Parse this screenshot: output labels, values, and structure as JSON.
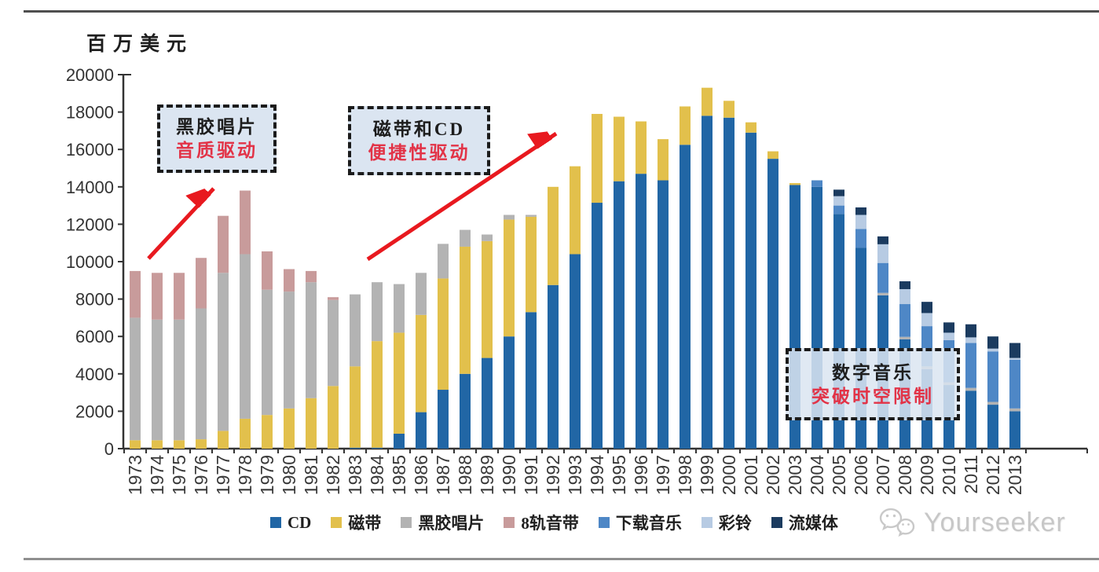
{
  "header": {
    "unit_label": "百万美元"
  },
  "chart_data": {
    "type": "bar",
    "stacked": true,
    "title": "",
    "xlabel": "",
    "ylabel": "百万美元",
    "ylim": [
      0,
      20000
    ],
    "ytick_step": 2000,
    "grid": false,
    "legend_position": "bottom",
    "x": [
      1973,
      1974,
      1975,
      1976,
      1977,
      1978,
      1979,
      1980,
      1981,
      1982,
      1983,
      1984,
      1985,
      1986,
      1987,
      1988,
      1989,
      1990,
      1991,
      1992,
      1993,
      1994,
      1995,
      1996,
      1997,
      1998,
      1999,
      2000,
      2001,
      2002,
      2003,
      2004,
      2005,
      2006,
      2007,
      2008,
      2009,
      2010,
      2011,
      2012,
      2013
    ],
    "series": [
      {
        "name": "CD",
        "color": "#2166a5",
        "values": [
          0,
          0,
          0,
          0,
          0,
          0,
          0,
          0,
          0,
          0,
          50,
          50,
          800,
          1950,
          3150,
          4000,
          4850,
          6000,
          7300,
          8750,
          10400,
          13150,
          14300,
          14700,
          14350,
          16250,
          17800,
          17700,
          16900,
          15500,
          14100,
          14000,
          12550,
          10750,
          8200,
          5850,
          4250,
          3400,
          3100,
          2350,
          2000
        ]
      },
      {
        "name": "磁带",
        "color": "#e2c04c",
        "values": [
          450,
          450,
          450,
          500,
          950,
          1600,
          1800,
          2150,
          2700,
          3350,
          4350,
          5700,
          5400,
          5200,
          5950,
          6800,
          6250,
          6250,
          5100,
          5250,
          4700,
          4750,
          3450,
          2800,
          2200,
          2050,
          1500,
          900,
          550,
          400,
          100,
          0,
          0,
          0,
          0,
          0,
          0,
          0,
          0,
          0,
          0
        ]
      },
      {
        "name": "黑胶唱片",
        "color": "#b3b3b3",
        "values": [
          6550,
          6450,
          6450,
          7000,
          8450,
          8800,
          6700,
          6250,
          6200,
          4600,
          3850,
          3150,
          2600,
          2250,
          1850,
          900,
          350,
          250,
          100,
          0,
          0,
          0,
          0,
          0,
          0,
          0,
          0,
          0,
          0,
          0,
          0,
          0,
          0,
          0,
          130,
          130,
          150,
          150,
          150,
          150,
          150
        ]
      },
      {
        "name": "8轨音带",
        "color": "#c89b9b",
        "values": [
          2500,
          2500,
          2500,
          2700,
          3050,
          3400,
          2050,
          1200,
          600,
          150,
          0,
          0,
          0,
          0,
          0,
          0,
          0,
          0,
          0,
          0,
          0,
          0,
          0,
          0,
          0,
          0,
          0,
          0,
          0,
          0,
          0,
          0,
          0,
          0,
          0,
          0,
          0,
          0,
          0,
          0,
          0
        ]
      },
      {
        "name": "下载音乐",
        "color": "#4e87c6",
        "values": [
          0,
          0,
          0,
          0,
          0,
          0,
          0,
          0,
          0,
          0,
          0,
          0,
          0,
          0,
          0,
          0,
          0,
          0,
          0,
          0,
          0,
          0,
          0,
          0,
          0,
          0,
          0,
          0,
          0,
          0,
          0,
          350,
          450,
          1000,
          1600,
          1750,
          2150,
          2250,
          2400,
          2700,
          2600
        ]
      },
      {
        "name": "彩铃",
        "color": "#b7cbe3",
        "values": [
          0,
          0,
          0,
          0,
          0,
          0,
          0,
          0,
          0,
          0,
          0,
          0,
          0,
          0,
          0,
          0,
          0,
          0,
          0,
          0,
          0,
          0,
          0,
          0,
          0,
          0,
          0,
          0,
          0,
          0,
          0,
          0,
          500,
          750,
          1000,
          800,
          700,
          400,
          300,
          150,
          100
        ]
      },
      {
        "name": "流媒体",
        "color": "#1b3b5f",
        "values": [
          0,
          0,
          0,
          0,
          0,
          0,
          0,
          0,
          0,
          0,
          0,
          0,
          0,
          0,
          0,
          0,
          0,
          0,
          0,
          0,
          0,
          0,
          0,
          0,
          0,
          0,
          0,
          0,
          0,
          0,
          0,
          0,
          350,
          400,
          420,
          420,
          600,
          550,
          700,
          650,
          800
        ]
      }
    ]
  },
  "annotations": [
    {
      "line1": "黑胶唱片",
      "line2": "音质驱动"
    },
    {
      "line1": "磁带和CD",
      "line2": "便捷性驱动"
    },
    {
      "line1": "数字音乐",
      "line2": "突破时空限制"
    }
  ],
  "style": {
    "annotation_bg": "#dbe5f1",
    "annotation_text": "#1d1d1d",
    "annotation_accent": "#e23347",
    "arrow_color": "#e8191f",
    "axis_color": "#333333",
    "rule_top_color": "#4f4f4f",
    "rule_bottom_color": "#8f8f8f"
  },
  "watermark": {
    "text": "Yourseeker",
    "icon": "wechat-icon"
  }
}
